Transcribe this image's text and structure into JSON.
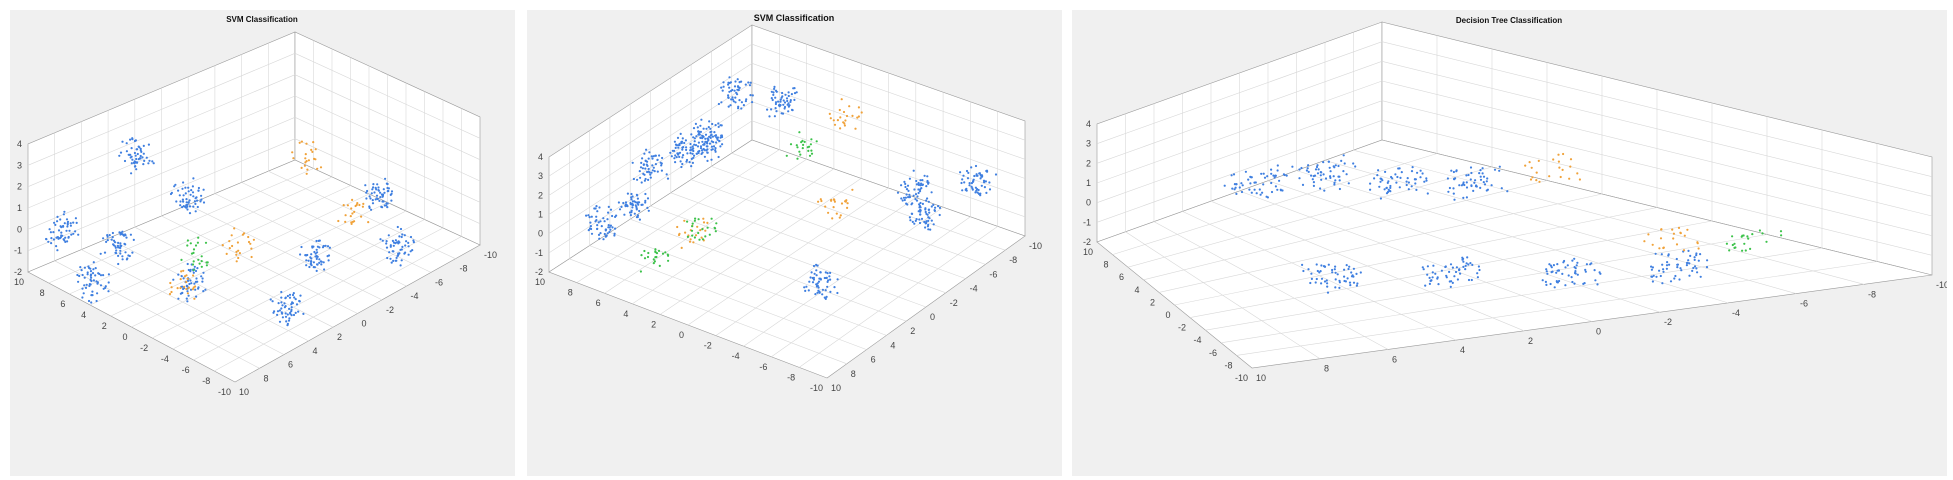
{
  "panels": [
    {
      "title": "SVM Classification",
      "axes": {
        "z_ticks": [
          "4",
          "3",
          "2",
          "1",
          "0",
          "-1",
          "-2"
        ],
        "y_ticks": [
          "10",
          "8",
          "6",
          "4",
          "2",
          "0",
          "-2",
          "-4",
          "-6",
          "-8",
          "-10"
        ],
        "x_ticks": [
          "10",
          "8",
          "6",
          "4",
          "2",
          "0",
          "-2",
          "-4",
          "-6",
          "-8",
          "-10"
        ]
      }
    },
    {
      "title": "SVM Classification",
      "axes": {
        "z_ticks": [
          "4",
          "3",
          "2",
          "1",
          "0",
          "-1",
          "-2"
        ],
        "y_ticks": [
          "10",
          "8",
          "6",
          "4",
          "2",
          "0",
          "-2",
          "-4",
          "-6",
          "-8",
          "-10"
        ],
        "x_ticks": [
          "10",
          "8",
          "6",
          "4",
          "2",
          "0",
          "-2",
          "-4",
          "-6",
          "-8",
          "-10"
        ]
      }
    },
    {
      "title": "Decision Tree Classification",
      "axes": {
        "z_ticks": [
          "4",
          "3",
          "2",
          "1",
          "0",
          "-1",
          "-2"
        ],
        "y_ticks": [
          "10",
          "8",
          "6",
          "4",
          "2",
          "0",
          "-2",
          "-4",
          "-6",
          "-8",
          "-10"
        ],
        "x_ticks": [
          "10",
          "8",
          "6",
          "4",
          "2",
          "0",
          "-2",
          "-4",
          "-6",
          "-8",
          "-10"
        ]
      }
    }
  ],
  "colors": {
    "blue": "#3f7fe0",
    "orange": "#f0a23a",
    "green": "#3cc24a",
    "grid": "#d8d8d8",
    "box": "#ffffff"
  },
  "chart_data": [
    {
      "type": "scatter",
      "title": "SVM Classification",
      "zlim": [
        -2,
        4
      ],
      "ylim": [
        -10,
        10
      ],
      "xlim": [
        -10,
        10
      ],
      "grid": true,
      "series": [
        {
          "color": "blue",
          "clusters": [
            [
              -8,
              9,
              -0.5
            ],
            [
              -9,
              5,
              -1.5
            ],
            [
              -6,
              6,
              -1
            ],
            [
              -2,
              9,
              1.2
            ],
            [
              -2,
              4,
              0.5
            ],
            [
              -7,
              -2,
              -0.3
            ],
            [
              -4,
              -8,
              -1
            ],
            [
              -1,
              -7,
              0.2
            ],
            [
              5,
              -8,
              -1
            ],
            [
              6,
              -5,
              0.3
            ]
          ]
        },
        {
          "color": "orange",
          "clusters": [
            [
              -6,
              0,
              -1.5
            ],
            [
              -3,
              -2,
              0
            ],
            [
              6,
              2,
              0.3
            ],
            [
              4,
              -5,
              0.2
            ]
          ]
        },
        {
          "color": "green",
          "clusters": [
            [
              -4,
              1,
              -0.8
            ]
          ]
        }
      ]
    },
    {
      "type": "scatter",
      "title": "SVM Classification",
      "zlim": [
        -2,
        4
      ],
      "ylim": [
        -10,
        10
      ],
      "xlim": [
        -10,
        10
      ],
      "grid": true,
      "series": [
        {
          "color": "blue",
          "clusters": [
            [
              -9,
              7,
              1
            ],
            [
              -7,
              6,
              1.5
            ],
            [
              -4,
              7,
              2
            ],
            [
              -2,
              6,
              2.5
            ],
            [
              0,
              6,
              2
            ],
            [
              2,
              7,
              1.5
            ],
            [
              5,
              4,
              3
            ],
            [
              6,
              8,
              2
            ],
            [
              -5,
              -6,
              0
            ],
            [
              4,
              -7,
              0.5
            ],
            [
              6,
              -5,
              0.5
            ],
            [
              8,
              -8,
              1
            ]
          ]
        },
        {
          "color": "orange",
          "clusters": [
            [
              -4,
              4,
              -0.5
            ],
            [
              2,
              -2,
              0.5
            ],
            [
              6,
              0,
              3
            ]
          ]
        },
        {
          "color": "green",
          "clusters": [
            [
              -6,
              5,
              -1.5
            ],
            [
              -3,
              4,
              -0.8
            ],
            [
              3,
              1,
              2.2
            ]
          ]
        }
      ]
    },
    {
      "type": "scatter",
      "title": "Decision Tree Classification",
      "zlim": [
        -2,
        4
      ],
      "ylim": [
        -10,
        10
      ],
      "xlim": [
        -10,
        10
      ],
      "grid": true,
      "series": [
        {
          "color": "blue",
          "clusters": [
            [
              -6,
              7,
              1
            ],
            [
              -4,
              7,
              1
            ],
            [
              -2,
              6,
              0.5
            ],
            [
              0,
              5,
              0.3
            ],
            [
              -6,
              -3,
              -0.5
            ],
            [
              -3,
              -5,
              -0.5
            ],
            [
              0,
              -7,
              -0.5
            ],
            [
              3,
              -8,
              -0.5
            ]
          ]
        },
        {
          "color": "orange",
          "clusters": [
            [
              2,
              4,
              0.8
            ],
            [
              4,
              -3,
              -1
            ]
          ]
        },
        {
          "color": "green",
          "clusters": [
            [
              6,
              -5,
              -1
            ]
          ]
        }
      ]
    }
  ]
}
